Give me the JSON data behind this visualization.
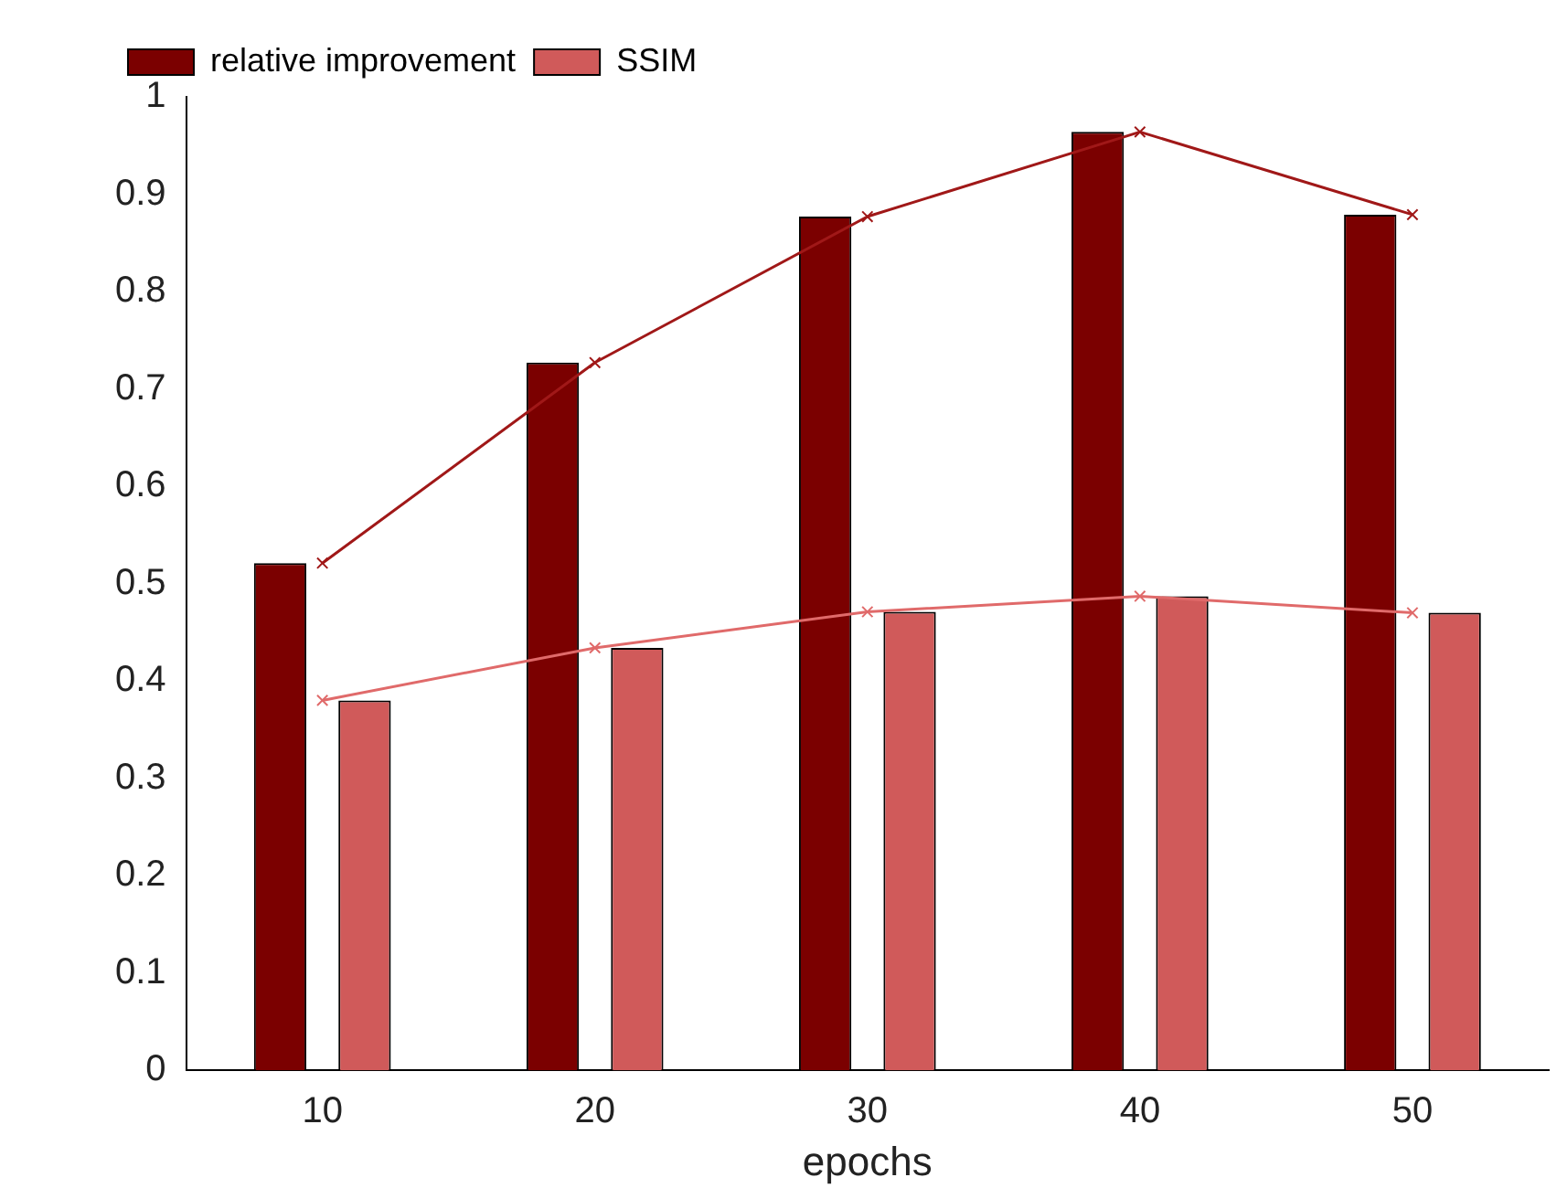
{
  "chart_data": {
    "type": "bar",
    "xlabel": "epochs",
    "categories": [
      "10",
      "20",
      "30",
      "40",
      "50"
    ],
    "series": [
      {
        "name": "relative improvement",
        "color": "#7b0000",
        "values": [
          0.521,
          0.727,
          0.877,
          0.964,
          0.879
        ]
      },
      {
        "name": "SSIM",
        "color": "#d05a5a",
        "values": [
          0.38,
          0.434,
          0.471,
          0.487,
          0.47
        ]
      },
      {
        "type": "line",
        "color": "#a01818",
        "values": [
          0.521,
          0.727,
          0.877,
          0.964,
          0.879
        ]
      },
      {
        "type": "line",
        "color": "#e06a6a",
        "values": [
          0.38,
          0.434,
          0.471,
          0.487,
          0.47
        ]
      }
    ],
    "ylim": [
      0,
      1
    ],
    "yticks": [
      0,
      0.1,
      0.2,
      0.3,
      0.4,
      0.5,
      0.6,
      0.7,
      0.8,
      0.9,
      1
    ],
    "grid": false,
    "legend": "top left",
    "marker": "cross"
  }
}
